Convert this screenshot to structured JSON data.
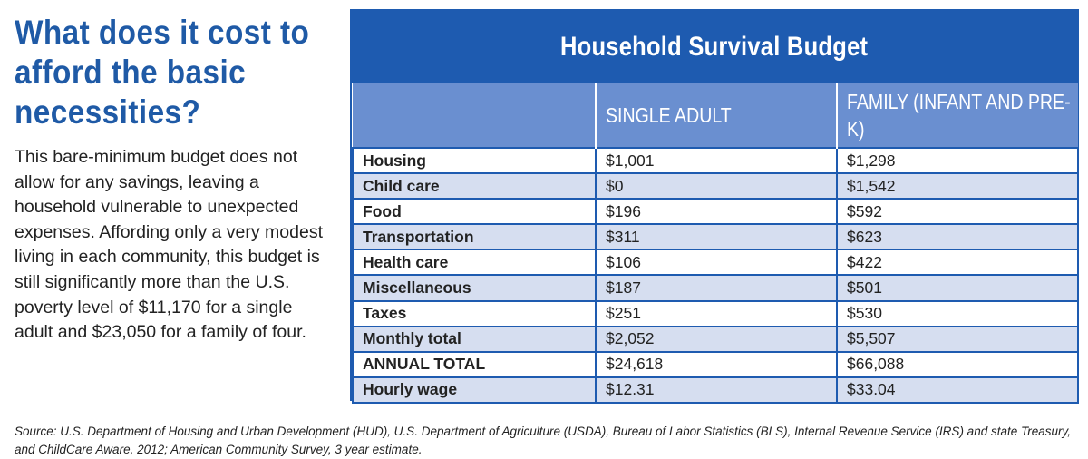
{
  "heading": "What does it cost to afford the basic necessities?",
  "body": "This bare-minimum budget does not allow for any savings, leaving a household vulnerable to unexpected expenses.  Affording only a very modest living in each community, this budget is still significantly more than the U.S. poverty level of $11,170 for a single adult and $23,050 for a family of four.",
  "table": {
    "title": "Household Survival Budget",
    "columns": [
      "",
      "SINGLE ADULT",
      "FAMILY (INFANT AND PRE-K)"
    ],
    "rows": [
      {
        "label": "Housing",
        "single": "$1,001",
        "family": "$1,298"
      },
      {
        "label": "Child care",
        "single": "$0",
        "family": "$1,542"
      },
      {
        "label": "Food",
        "single": "$196",
        "family": "$592"
      },
      {
        "label": "Transportation",
        "single": "$311",
        "family": "$623"
      },
      {
        "label": "Health care",
        "single": "$106",
        "family": "$422"
      },
      {
        "label": "Miscellaneous",
        "single": "$187",
        "family": "$501"
      },
      {
        "label": "Taxes",
        "single": "$251",
        "family": "$530"
      },
      {
        "label": "Monthly total",
        "single": "$2,052",
        "family": "$5,507"
      },
      {
        "label": "ANNUAL TOTAL",
        "single": "$24,618",
        "family": "$66,088"
      },
      {
        "label": "Hourly wage",
        "single": "$12.31",
        "family": "$33.04"
      }
    ]
  },
  "source": "Source: U.S. Department of Housing and Urban Development (HUD), U.S. Department of Agriculture (USDA), Bureau of Labor Statistics (BLS), Internal Revenue Service (IRS) and state Treasury, and ChildCare Aware, 2012; American Community Survey, 3 year estimate.",
  "colors": {
    "brand_blue": "#1e5bb0",
    "header_blue": "#6a8fd0",
    "heading_blue": "#1f5aa6",
    "row_alt": "#d6def0"
  }
}
